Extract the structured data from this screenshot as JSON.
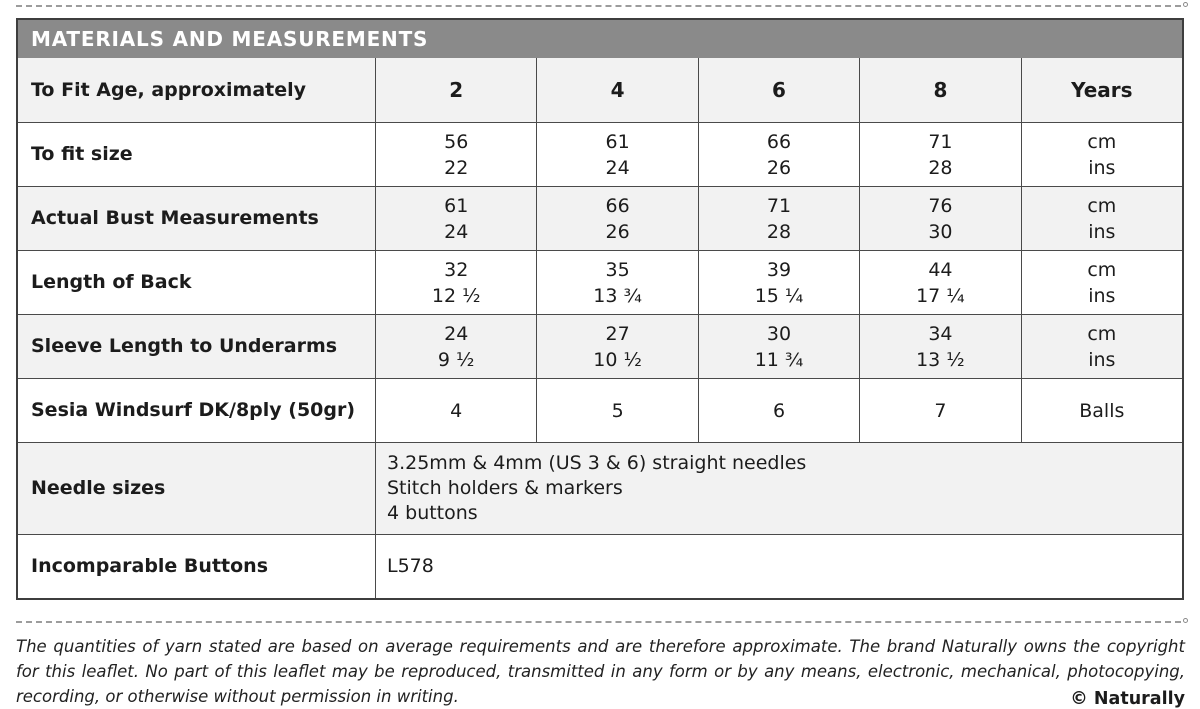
{
  "table": {
    "title": "MATERIALS AND MEASUREMENTS",
    "rows": [
      {
        "label": "To Fit Age, approximately",
        "cells": [
          [
            "2"
          ],
          [
            "4"
          ],
          [
            "6"
          ],
          [
            "8"
          ],
          [
            "Years"
          ]
        ]
      },
      {
        "label": "To fit size",
        "cells": [
          [
            "56",
            "22"
          ],
          [
            "61",
            "24"
          ],
          [
            "66",
            "26"
          ],
          [
            "71",
            "28"
          ],
          [
            "cm",
            "ins"
          ]
        ]
      },
      {
        "label": "Actual Bust Measurements",
        "cells": [
          [
            "61",
            "24"
          ],
          [
            "66",
            "26"
          ],
          [
            "71",
            "28"
          ],
          [
            "76",
            "30"
          ],
          [
            "cm",
            "ins"
          ]
        ]
      },
      {
        "label": "Length of Back",
        "cells": [
          [
            "32",
            "12 ½"
          ],
          [
            "35",
            "13 ¾"
          ],
          [
            "39",
            "15 ¼"
          ],
          [
            "44",
            "17 ¼"
          ],
          [
            "cm",
            "ins"
          ]
        ]
      },
      {
        "label": "Sleeve Length to Underarms",
        "cells": [
          [
            "24",
            "9 ½"
          ],
          [
            "27",
            "10 ½"
          ],
          [
            "30",
            "11 ¾"
          ],
          [
            "34",
            "13 ½"
          ],
          [
            "cm",
            "ins"
          ]
        ]
      },
      {
        "label": "Sesia Windsurf DK/8ply (50gr)",
        "cells": [
          [
            "4"
          ],
          [
            "5"
          ],
          [
            "6"
          ],
          [
            "7"
          ],
          [
            "Balls"
          ]
        ]
      },
      {
        "label": "Needle sizes",
        "span_lines": [
          "3.25mm & 4mm (US 3 & 6) straight needles",
          "Stitch holders & markers",
          "4 buttons"
        ]
      },
      {
        "label": "Incomparable Buttons",
        "span_lines": [
          "L578"
        ]
      }
    ]
  },
  "footer": {
    "disclaimer": "The quantities of yarn stated are based on average requirements and are therefore approximate. The brand Naturally owns the copyright for this leaflet. No part of this leaflet may be reproduced, transmitted in any form or by any means, electronic, mechanical, photocopying, recording, or otherwise without permission in writing.",
    "copyright": "© Naturally"
  }
}
